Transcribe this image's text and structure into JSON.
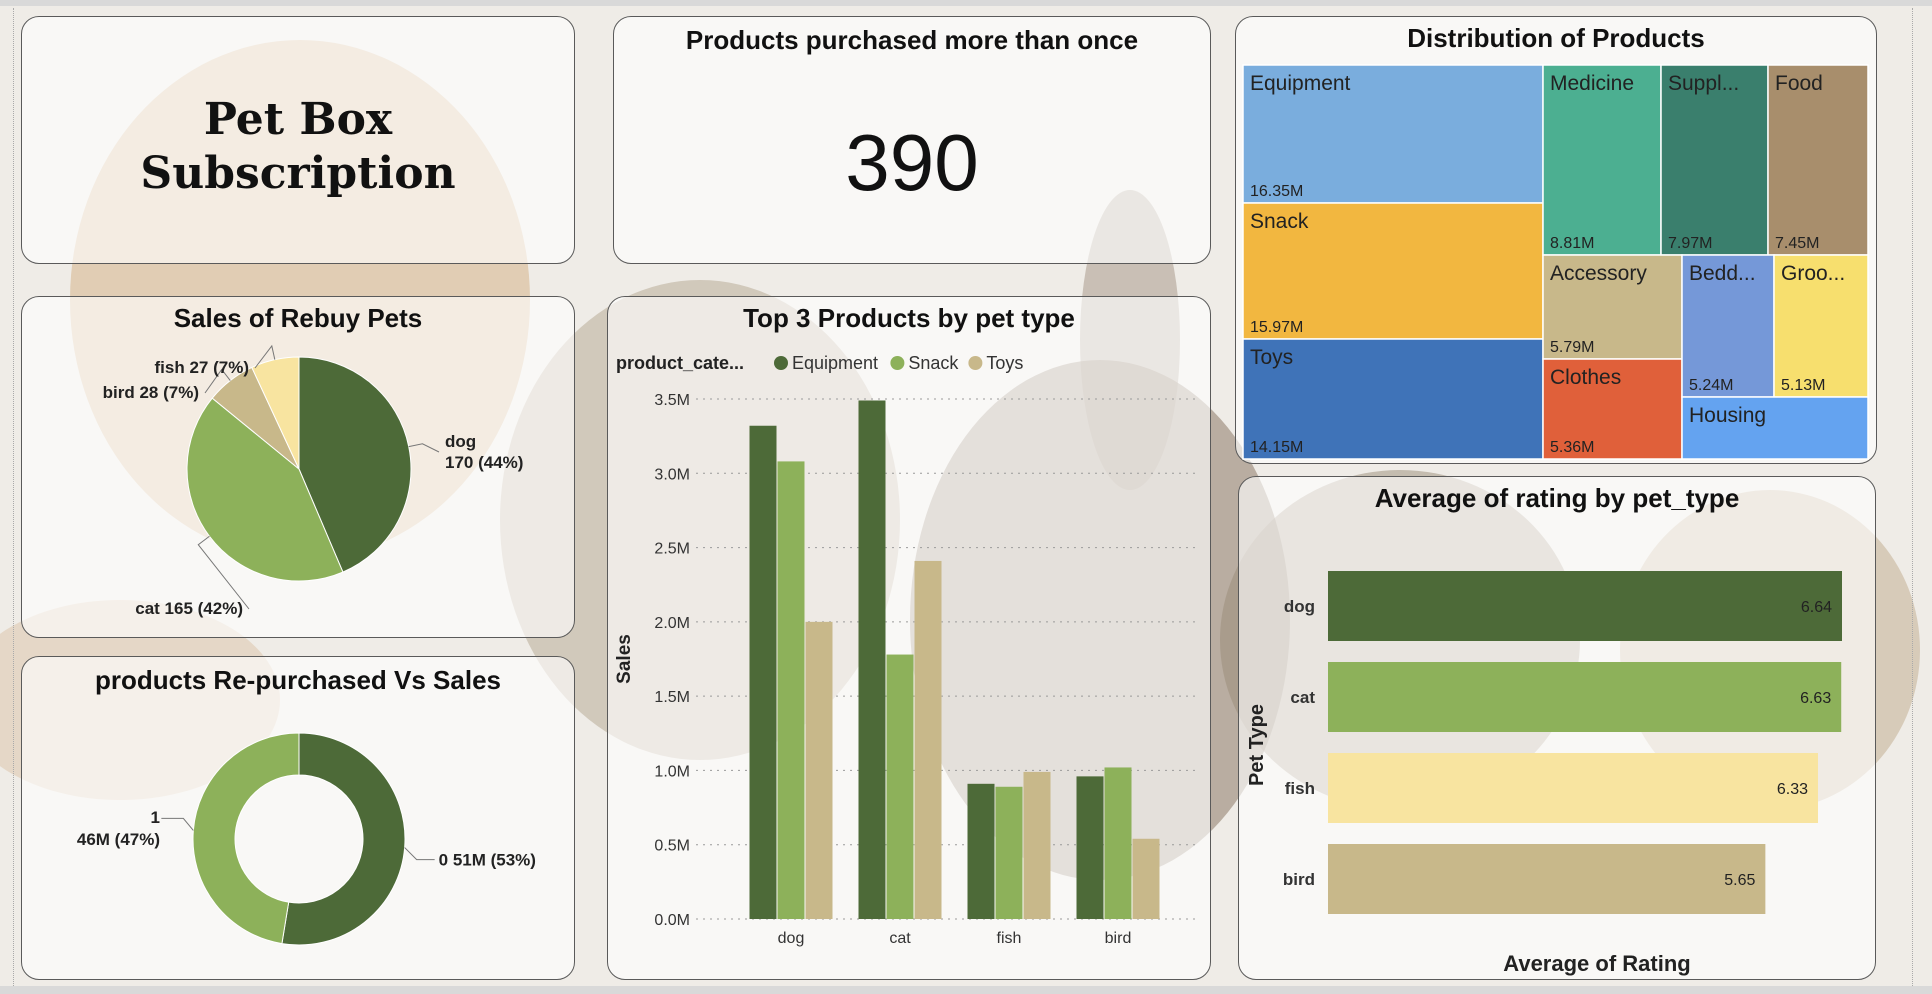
{
  "dashboard": {
    "title_line1": "Pet Box",
    "title_line2": "Subscription"
  },
  "kpi": {
    "title": "Products purchased more than once",
    "value": "390"
  },
  "colors": {
    "dog": "#4d6a38",
    "cat": "#8db15a",
    "fish": "#f8e4a0",
    "bird": "#c8b88a",
    "equipment": "#4d6a38",
    "snack": "#8db15a",
    "toys": "#c8b88a"
  },
  "chart_data": [
    {
      "id": "rebuy_pie",
      "type": "pie",
      "title": "Sales of Rebuy Pets",
      "slices": [
        {
          "label": "dog",
          "value": 170,
          "pct": "44%",
          "color": "#4d6a38"
        },
        {
          "label": "cat",
          "value": 165,
          "pct": "42%",
          "color": "#8db15a"
        },
        {
          "label": "bird",
          "value": 28,
          "pct": "7%",
          "color": "#c8b88a"
        },
        {
          "label": "fish",
          "value": 27,
          "pct": "7%",
          "color": "#f8e4a0"
        }
      ]
    },
    {
      "id": "repurchase_donut",
      "type": "pie",
      "title": "products Re-purchased Vs Sales",
      "slices": [
        {
          "label": "0",
          "value_text": "51M",
          "value": 51,
          "pct": "53%",
          "color": "#4d6a38"
        },
        {
          "label": "1",
          "value_text": "46M",
          "value": 46,
          "pct": "47%",
          "color": "#8db15a"
        }
      ]
    },
    {
      "id": "top3_bar",
      "type": "bar",
      "title": "Top 3 Products by pet type",
      "legend_title": "product_cate...",
      "legend_position": "top-left",
      "categories": [
        "dog",
        "cat",
        "fish",
        "bird"
      ],
      "ylabel": "Sales",
      "xlabel": "",
      "ylim": [
        0,
        3.5
      ],
      "yticks": [
        "0.0M",
        "0.5M",
        "1.0M",
        "1.5M",
        "2.0M",
        "2.5M",
        "3.0M",
        "3.5M"
      ],
      "grid": true,
      "series": [
        {
          "name": "Equipment",
          "values": [
            3.32,
            3.49,
            0.91,
            0.96
          ],
          "color": "#4d6a38"
        },
        {
          "name": "Snack",
          "values": [
            3.08,
            1.78,
            0.89,
            1.02
          ],
          "color": "#8db15a"
        },
        {
          "name": "Toys",
          "values": [
            2.0,
            2.41,
            0.99,
            0.54
          ],
          "color": "#c8b88a"
        }
      ]
    },
    {
      "id": "product_treemap",
      "type": "treemap",
      "title": "Distribution of Products",
      "items": [
        {
          "label": "Equipment",
          "value": 16.35,
          "value_text": "16.35M",
          "color": "#7aaddd"
        },
        {
          "label": "Snack",
          "value": 15.97,
          "value_text": "15.97M",
          "color": "#f2b740"
        },
        {
          "label": "Toys",
          "value": 14.15,
          "value_text": "14.15M",
          "color": "#3f73b8"
        },
        {
          "label": "Medicine",
          "value": 8.81,
          "value_text": "8.81M",
          "color": "#4caf91"
        },
        {
          "label": "Suppl...",
          "value": 7.97,
          "value_text": "7.97M",
          "color": "#3a7f6d"
        },
        {
          "label": "Food",
          "value": 7.45,
          "value_text": "7.45M",
          "color": "#a88e6c"
        },
        {
          "label": "Accessory",
          "value": 5.79,
          "value_text": "5.79M",
          "color": "#c8b88a"
        },
        {
          "label": "Clothes",
          "value": 5.36,
          "value_text": "5.36M",
          "color": "#e0603a"
        },
        {
          "label": "Bedd...",
          "value": 5.24,
          "value_text": "5.24M",
          "color": "#7598d8"
        },
        {
          "label": "Groo...",
          "value": 5.13,
          "value_text": "5.13M",
          "color": "#f7df6e"
        },
        {
          "label": "Housing",
          "value": null,
          "value_text": "",
          "color": "#64a3f0"
        }
      ]
    },
    {
      "id": "rating_bar",
      "type": "bar",
      "orientation": "horizontal",
      "title": "Average of rating by pet_type",
      "categories": [
        "dog",
        "cat",
        "fish",
        "bird"
      ],
      "values": [
        6.64,
        6.63,
        6.33,
        5.65
      ],
      "colors": [
        "#4d6a38",
        "#8db15a",
        "#f8e4a0",
        "#c8b88a"
      ],
      "xlabel": "Average of Rating",
      "ylabel": "Pet Type"
    }
  ]
}
